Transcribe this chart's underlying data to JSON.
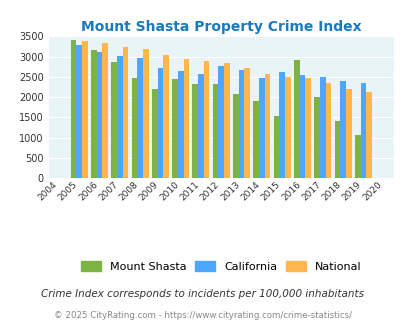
{
  "title": "Mount Shasta Property Crime Index",
  "years": [
    2004,
    2005,
    2006,
    2007,
    2008,
    2009,
    2010,
    2011,
    2012,
    2013,
    2014,
    2015,
    2016,
    2017,
    2018,
    2019,
    2020
  ],
  "mount_shasta": [
    null,
    3420,
    3150,
    2870,
    2470,
    2200,
    2450,
    2330,
    2330,
    2080,
    1900,
    1530,
    2920,
    2010,
    1420,
    1060,
    null
  ],
  "california": [
    null,
    3280,
    3120,
    3020,
    2960,
    2720,
    2640,
    2580,
    2760,
    2660,
    2460,
    2610,
    2540,
    2490,
    2400,
    2350,
    null
  ],
  "national": [
    null,
    3380,
    3330,
    3240,
    3180,
    3030,
    2940,
    2890,
    2850,
    2720,
    2580,
    2490,
    2470,
    2360,
    2200,
    2120,
    null
  ],
  "bar_colors": {
    "mount_shasta": "#7cb342",
    "california": "#4da6ff",
    "national": "#ffb74d"
  },
  "ylim": [
    0,
    3500
  ],
  "yticks": [
    0,
    500,
    1000,
    1500,
    2000,
    2500,
    3000,
    3500
  ],
  "background_color": "#e8f4f8",
  "legend_labels": [
    "Mount Shasta",
    "California",
    "National"
  ],
  "footnote1": "Crime Index corresponds to incidents per 100,000 inhabitants",
  "footnote2": "© 2025 CityRating.com - https://www.cityrating.com/crime-statistics/"
}
